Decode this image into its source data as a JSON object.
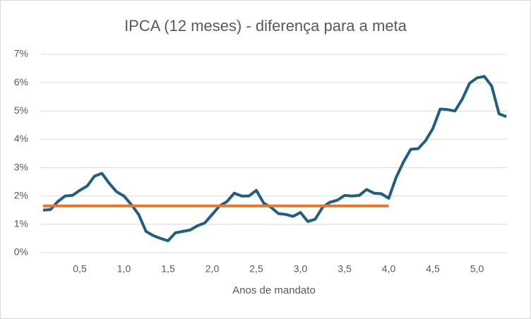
{
  "chart_data": {
    "type": "line",
    "title": "IPCA (12 meses) - diferença para a meta",
    "x_label": "Anos de mandato",
    "x": [
      0.0833,
      0.1667,
      0.25,
      0.3333,
      0.4167,
      0.5,
      0.5833,
      0.6667,
      0.75,
      0.8333,
      0.9167,
      1,
      1.0833,
      1.1667,
      1.25,
      1.3333,
      1.4167,
      1.5,
      1.5833,
      1.6667,
      1.75,
      1.8333,
      1.9167,
      2,
      2.0833,
      2.1667,
      2.25,
      2.3333,
      2.4167,
      2.5,
      2.5833,
      2.6667,
      2.75,
      2.8333,
      2.9167,
      3,
      3.0833,
      3.1667,
      3.25,
      3.3333,
      3.4167,
      3.5,
      3.5833,
      3.6667,
      3.75,
      3.8333,
      3.9167,
      4,
      4.0833,
      4.1667,
      4.25,
      4.3333,
      4.4167,
      4.5,
      4.5833,
      4.6667,
      4.75,
      4.8333,
      4.9167,
      5,
      5.0833,
      5.1667,
      5.25,
      5.3333
    ],
    "series": [
      {
        "color": "#1f5f82",
        "values": [
          1.5,
          1.52,
          1.8,
          2.0,
          2.02,
          2.2,
          2.35,
          2.7,
          2.8,
          2.45,
          2.15,
          2.0,
          1.7,
          1.35,
          0.75,
          0.6,
          0.5,
          0.42,
          0.7,
          0.75,
          0.8,
          0.95,
          1.05,
          1.35,
          1.65,
          1.8,
          2.1,
          2.0,
          2.0,
          2.2,
          1.75,
          1.6,
          1.38,
          1.35,
          1.28,
          1.42,
          1.1,
          1.18,
          1.6,
          1.78,
          1.85,
          2.02,
          2.0,
          2.02,
          2.23,
          2.1,
          2.08,
          1.92,
          2.65,
          3.2,
          3.65,
          3.67,
          3.95,
          4.38,
          5.07,
          5.05,
          5.0,
          5.42,
          5.98,
          6.17,
          6.22,
          5.88,
          4.9,
          4.8
        ]
      },
      {
        "color": "#e8762d",
        "values": [
          1.65,
          1.65,
          1.65,
          1.65,
          1.65,
          1.65,
          1.65,
          1.65,
          1.65,
          1.65,
          1.65,
          1.65,
          1.65,
          1.65,
          1.65,
          1.65,
          1.65,
          1.65,
          1.65,
          1.65,
          1.65,
          1.65,
          1.65,
          1.65,
          1.65,
          1.65,
          1.65,
          1.65,
          1.65,
          1.65,
          1.65,
          1.65,
          1.65,
          1.65,
          1.65,
          1.65,
          1.65,
          1.65,
          1.65,
          1.65,
          1.65,
          1.65,
          1.65,
          1.65,
          1.65,
          1.65,
          1.65,
          1.65,
          null,
          null,
          null,
          null,
          null,
          null,
          null,
          null,
          null,
          null,
          null,
          null,
          null,
          null,
          null,
          null
        ]
      }
    ],
    "xlim": [
      0.06,
      5.34
    ],
    "xticks": [
      {
        "value": 0.5,
        "label": "0,5"
      },
      {
        "value": 1,
        "label": "1,0"
      },
      {
        "value": 1.5,
        "label": "1,5"
      },
      {
        "value": 2,
        "label": "2,0"
      },
      {
        "value": 2.5,
        "label": "2,5"
      },
      {
        "value": 3,
        "label": "3,0"
      },
      {
        "value": 3.5,
        "label": "3,5"
      },
      {
        "value": 4,
        "label": "4,0"
      },
      {
        "value": 4.5,
        "label": "4,5"
      },
      {
        "value": 5,
        "label": "5,0"
      }
    ],
    "ylim": [
      0,
      7
    ],
    "yticks": [
      {
        "value": 0,
        "label": "0%"
      },
      {
        "value": 1,
        "label": "1%"
      },
      {
        "value": 2,
        "label": "2%"
      },
      {
        "value": 3,
        "label": "3%"
      },
      {
        "value": 4,
        "label": "4%"
      },
      {
        "value": 5,
        "label": "5%"
      },
      {
        "value": 6,
        "label": "6%"
      },
      {
        "value": 7,
        "label": "7%"
      }
    ],
    "grid": true
  }
}
